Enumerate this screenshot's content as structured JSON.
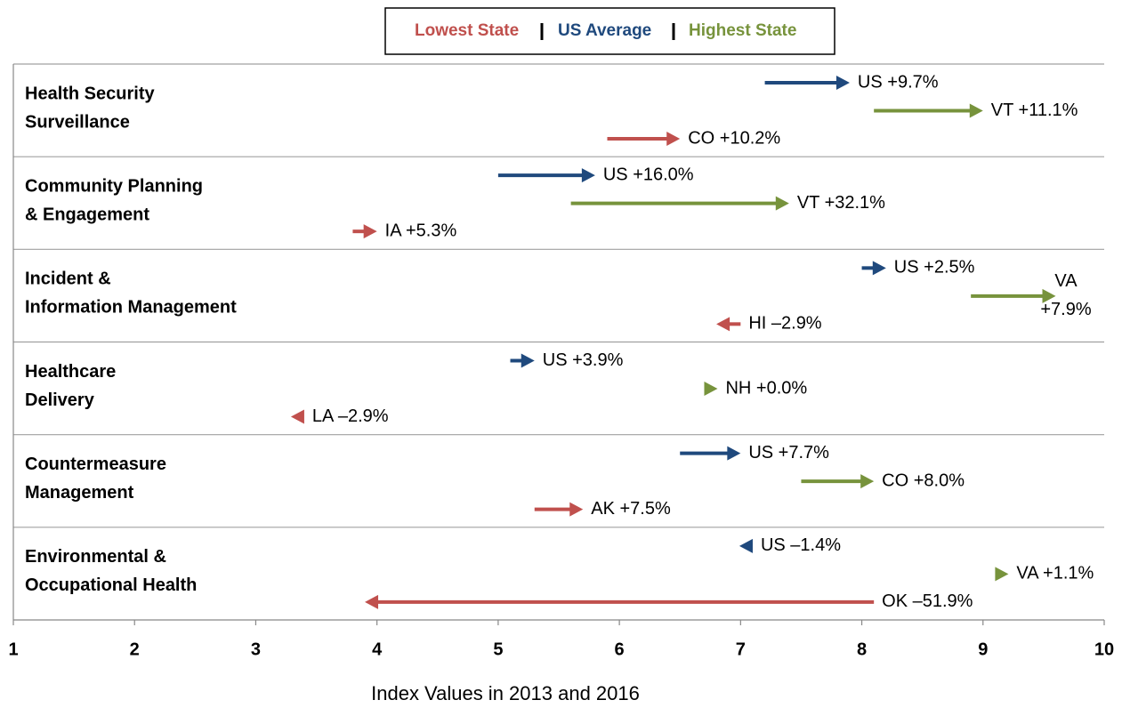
{
  "chart_data": {
    "type": "arrow",
    "x_label": "Index Values in 2013 and 2016",
    "xlim": [
      1,
      10
    ],
    "xticks": [
      1,
      2,
      3,
      4,
      5,
      6,
      7,
      8,
      9,
      10
    ],
    "categories": [
      [
        "Health Security",
        "Surveillance"
      ],
      [
        "Community Planning",
        "& Engagement"
      ],
      [
        "Incident &",
        "Information Management"
      ],
      [
        "Healthcare",
        "Delivery"
      ],
      [
        "Countermeasure",
        "Management"
      ],
      [
        "Environmental &",
        "Occupational Health"
      ]
    ],
    "series": [
      {
        "name": "Lowest State",
        "color": "#c0504d",
        "start": [
          5.9,
          3.8,
          7.0,
          3.4,
          5.3,
          8.1
        ],
        "end": [
          6.5,
          4.0,
          6.8,
          3.3,
          5.7,
          3.9
        ],
        "value_labels": [
          "CO +10.2%",
          "IA +5.3%",
          "HI –2.9%",
          "LA –2.9%",
          "AK +7.5%",
          "OK –51.9%"
        ]
      },
      {
        "name": "US Average",
        "color": "#1f497d",
        "start": [
          7.2,
          5.0,
          8.0,
          5.1,
          6.5,
          7.1
        ],
        "end": [
          7.9,
          5.8,
          8.2,
          5.3,
          7.0,
          7.0
        ],
        "value_labels": [
          "US +9.7%",
          "US +16.0%",
          "US +2.5%",
          "US +3.9%",
          "US +7.7%",
          "US –1.4%"
        ]
      },
      {
        "name": "Highest State",
        "color": "#77933c",
        "start": [
          8.1,
          5.6,
          8.9,
          6.7,
          7.5,
          9.1
        ],
        "end": [
          9.0,
          7.4,
          9.6,
          6.7,
          8.1,
          9.2
        ],
        "value_labels": [
          "VT +11.1%",
          "VT +32.1%",
          "VA +7.9%",
          "NH +0.0%",
          "CO +8.0%",
          "VA +1.1%"
        ]
      }
    ]
  }
}
